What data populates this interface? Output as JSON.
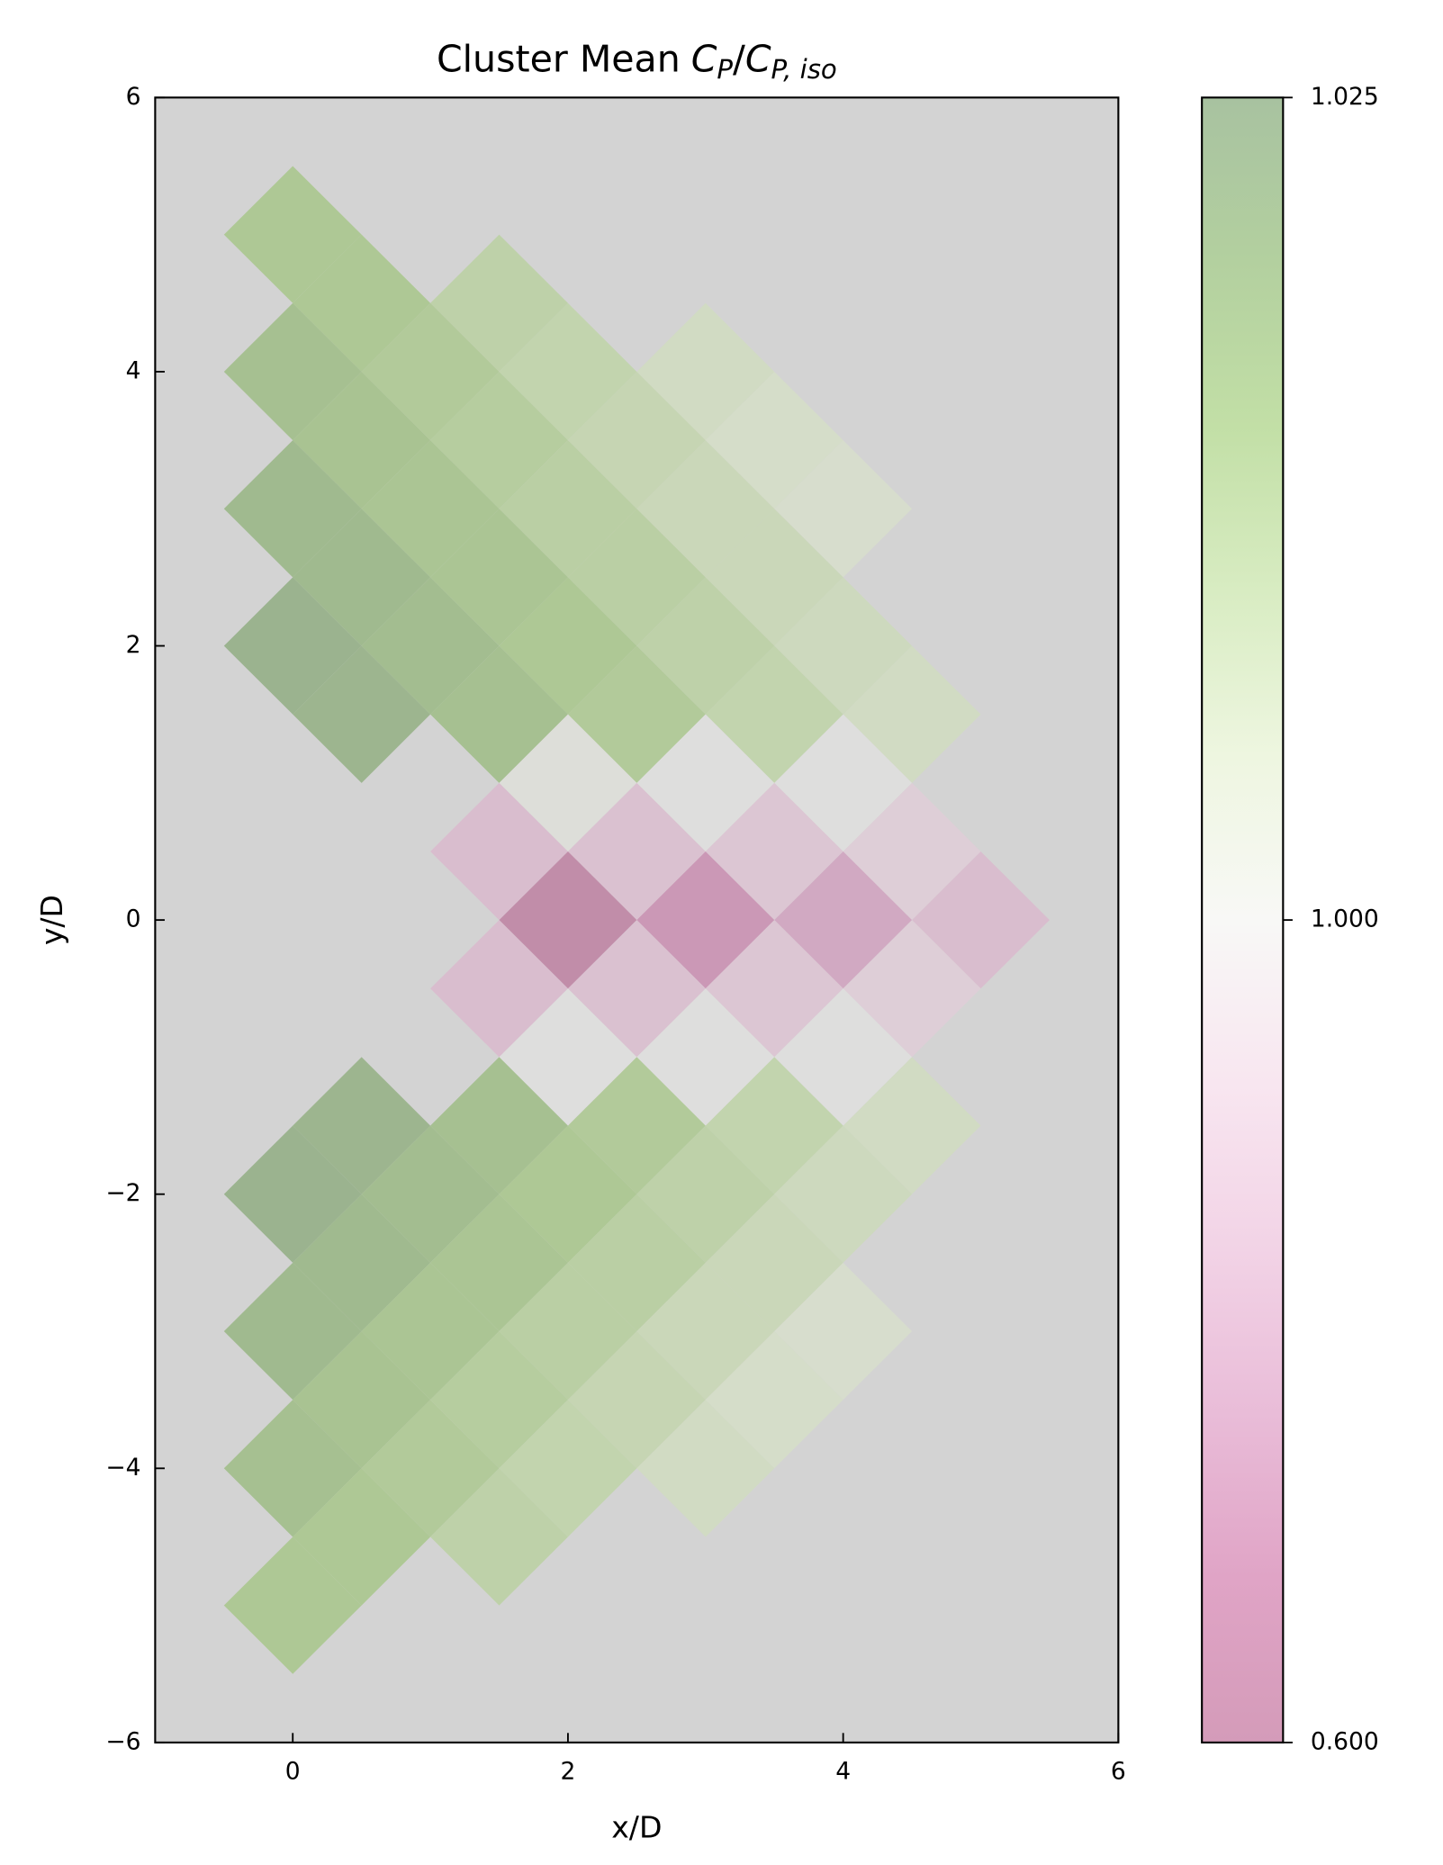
{
  "chart_data": {
    "type": "heatmap",
    "title": [
      "Cluster Mean",
      "C",
      "P",
      "/",
      "C",
      "P, iso"
    ],
    "xlabel": "x/D",
    "ylabel": "y/D",
    "xlim": [
      -1,
      6
    ],
    "ylim": [
      -6,
      6
    ],
    "xticks": [
      0,
      2,
      4,
      6
    ],
    "yticks": [
      {
        "value": -6,
        "label": "−6"
      },
      {
        "value": -4,
        "label": "−4"
      },
      {
        "value": -2,
        "label": "−2"
      },
      0,
      2,
      4,
      6
    ],
    "axes_facecolor": "#d3d3d3",
    "clim": [
      0.6,
      1.025
    ],
    "norm_center": 1.0,
    "cticks": [
      {
        "value": 0.6,
        "label": "0.600"
      },
      {
        "value": 1.0,
        "label": "1.000"
      },
      {
        "value": 1.025,
        "label": "1.025"
      }
    ],
    "x": [
      0,
      0.5,
      1.5,
      0,
      1,
      2,
      3,
      0.5,
      1.5,
      2.5,
      3.5,
      0,
      1,
      2,
      3,
      4,
      0.5,
      1.5,
      2.5,
      3.5,
      0,
      1,
      2,
      3,
      4,
      0.5,
      1.5,
      2.5,
      3.5,
      4.5,
      2,
      3,
      4,
      1.5,
      2.5,
      3.5,
      4.5,
      2,
      3,
      4,
      5,
      1.5,
      2.5,
      3.5,
      4.5,
      2,
      3,
      4,
      0.5,
      1.5,
      2.5,
      3.5,
      4.5,
      0,
      1,
      2,
      3,
      4,
      0.5,
      1.5,
      2.5,
      3.5,
      0,
      1,
      2,
      3,
      4,
      0.5,
      1.5,
      2.5,
      3.5,
      0,
      1,
      2,
      3,
      0.5,
      1.5,
      0
    ],
    "y": [
      5,
      4.5,
      4.5,
      4,
      4,
      4,
      4,
      3.5,
      3.5,
      3.5,
      3.5,
      3,
      3,
      3,
      3,
      3,
      2.5,
      2.5,
      2.5,
      2.5,
      2,
      2,
      2,
      2,
      2,
      1.5,
      1.5,
      1.5,
      1.5,
      1.5,
      1,
      1,
      1,
      0.5,
      0.5,
      0.5,
      0.5,
      0,
      0,
      0,
      0,
      -0.5,
      -0.5,
      -0.5,
      -0.5,
      -1,
      -1,
      -1,
      -1.5,
      -1.5,
      -1.5,
      -1.5,
      -1.5,
      -2,
      -2,
      -2,
      -2,
      -2,
      -2.5,
      -2.5,
      -2.5,
      -2.5,
      -3,
      -3,
      -3,
      -3,
      -3,
      -3.5,
      -3.5,
      -3.5,
      -3.5,
      -4,
      -4,
      -4,
      -4,
      -4.5,
      -4.5,
      -5
    ],
    "values": [
      1.015,
      1.015,
      1.011,
      1.018,
      1.014,
      1.01,
      1.006,
      1.017,
      1.013,
      1.009,
      1.005,
      1.02,
      1.016,
      1.012,
      1.008,
      1.004,
      1.02,
      1.016,
      1.012,
      1.008,
      1.023,
      1.019,
      1.015,
      1.011,
      1.007,
      1.022,
      1.018,
      1.014,
      1.01,
      1.006,
      1.001,
      1.0,
      1.0,
      0.84,
      0.86,
      0.88,
      0.92,
      0.62,
      0.7,
      0.76,
      0.84,
      0.84,
      0.86,
      0.88,
      0.92,
      1.0,
      1.0,
      1.0,
      1.022,
      1.018,
      1.014,
      1.01,
      1.006,
      1.023,
      1.019,
      1.015,
      1.011,
      1.007,
      1.02,
      1.016,
      1.012,
      1.008,
      1.02,
      1.016,
      1.012,
      1.008,
      1.004,
      1.017,
      1.013,
      1.009,
      1.005,
      1.018,
      1.014,
      1.01,
      1.006,
      1.015,
      1.011,
      1.015
    ]
  }
}
